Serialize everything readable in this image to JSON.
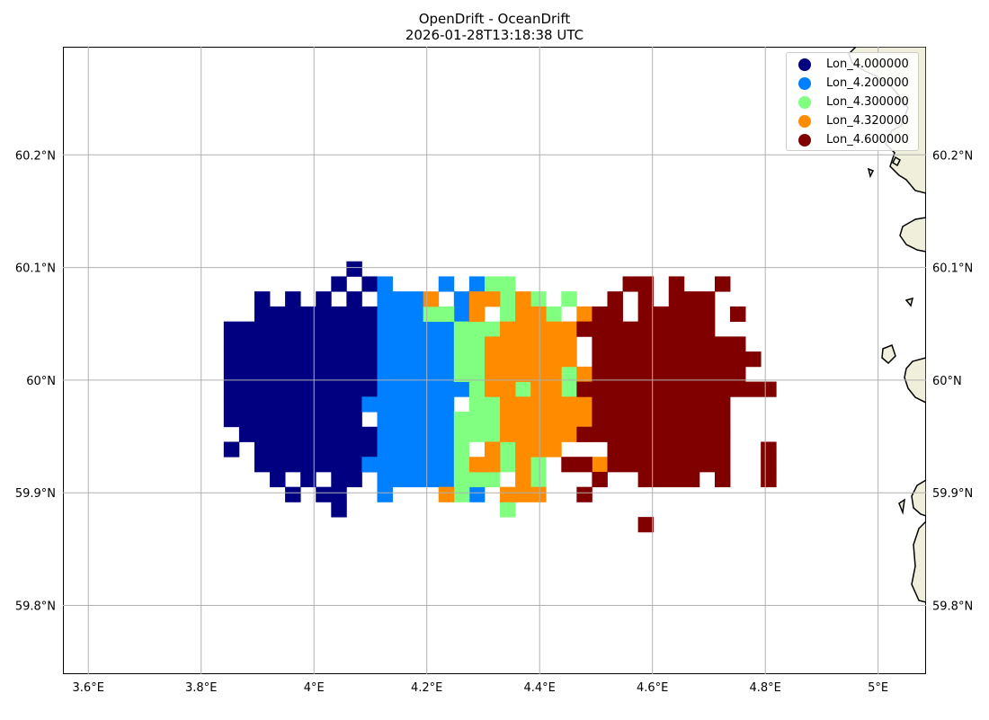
{
  "title": {
    "line1": "OpenDrift - OceanDrift",
    "line2": "2026-01-28T13:18:38 UTC"
  },
  "colors": {
    "land_fill": "#efefdb",
    "coastline": "#000000",
    "grid": "#b0b0b0"
  },
  "map": {
    "lon_range": [
      3.555,
      5.085
    ],
    "lat_range": [
      59.739,
      60.296
    ],
    "cell_size_deg": [
      0.0272,
      0.01335
    ],
    "grid_origin": [
      3.84,
      60.1055
    ],
    "x_ticks": [
      {
        "value": 3.6,
        "label": "3.6°E"
      },
      {
        "value": 3.8,
        "label": "3.8°E"
      },
      {
        "value": 4.0,
        "label": "4°E"
      },
      {
        "value": 4.2,
        "label": "4.2°E"
      },
      {
        "value": 4.4,
        "label": "4.4°E"
      },
      {
        "value": 4.6,
        "label": "4.6°E"
      },
      {
        "value": 4.8,
        "label": "4.8°E"
      },
      {
        "value": 5.0,
        "label": "5°E"
      }
    ],
    "y_ticks": [
      {
        "value": 59.8,
        "label": "59.8°N"
      },
      {
        "value": 59.9,
        "label": "59.9°N"
      },
      {
        "value": 60.0,
        "label": "60°N"
      },
      {
        "value": 60.1,
        "label": "60.1°N"
      },
      {
        "value": 60.2,
        "label": "60.2°N"
      }
    ],
    "series": [
      {
        "name": "Lon_4.000000",
        "color": "#000080",
        "rows": [
          [
            [
              8,
              8
            ]
          ],
          [
            [
              7,
              7
            ],
            [
              9,
              9
            ]
          ],
          [
            [
              2,
              2
            ],
            [
              4,
              4
            ],
            [
              6,
              6
            ],
            [
              8,
              8
            ]
          ],
          [
            [
              2,
              9
            ]
          ],
          [
            [
              0,
              9
            ]
          ],
          [
            [
              0,
              9
            ]
          ],
          [
            [
              0,
              9
            ]
          ],
          [
            [
              0,
              9
            ]
          ],
          [
            [
              0,
              9
            ]
          ],
          [
            [
              0,
              9
            ]
          ],
          [
            [
              0,
              8
            ]
          ],
          [
            [
              1,
              9
            ]
          ],
          [
            [
              0,
              0
            ],
            [
              2,
              9
            ]
          ],
          [
            [
              2,
              9
            ]
          ],
          [
            [
              3,
              3
            ],
            [
              5,
              5
            ],
            [
              7,
              8
            ]
          ],
          [
            [
              4,
              4
            ],
            [
              6,
              7
            ]
          ],
          [
            [
              7,
              7
            ]
          ]
        ]
      },
      {
        "name": "Lon_4.200000",
        "color": "#0080ff",
        "rows": [
          [],
          [
            [
              10,
              10
            ],
            [
              14,
              14
            ],
            [
              16,
              16
            ]
          ],
          [
            [
              10,
              12
            ],
            [
              15,
              15
            ]
          ],
          [
            [
              10,
              12
            ],
            [
              15,
              15
            ]
          ],
          [
            [
              10,
              14
            ]
          ],
          [
            [
              10,
              14
            ]
          ],
          [
            [
              10,
              14
            ]
          ],
          [
            [
              10,
              15
            ]
          ],
          [
            [
              10,
              15
            ]
          ],
          [
            [
              9,
              14
            ]
          ],
          [
            [
              10,
              14
            ]
          ],
          [
            [
              10,
              14
            ]
          ],
          [
            [
              10,
              14
            ]
          ],
          [
            [
              9,
              14
            ]
          ],
          [
            [
              10,
              14
            ]
          ],
          [
            [
              10,
              10
            ],
            [
              16,
              16
            ]
          ],
          []
        ]
      },
      {
        "name": "Lon_4.300000",
        "color": "#80ff80",
        "rows": [
          [],
          [
            [
              17,
              18
            ]
          ],
          [
            [
              18,
              18
            ],
            [
              20,
              20
            ],
            [
              22,
              22
            ]
          ],
          [
            [
              13,
              14
            ],
            [
              18,
              18
            ],
            [
              21,
              21
            ]
          ],
          [
            [
              15,
              17
            ],
            [
              20,
              20
            ]
          ],
          [
            [
              15,
              16
            ]
          ],
          [
            [
              15,
              16
            ]
          ],
          [
            [
              15,
              16
            ],
            [
              22,
              22
            ]
          ],
          [
            [
              16,
              16
            ],
            [
              19,
              19
            ],
            [
              22,
              22
            ]
          ],
          [
            [
              16,
              17
            ]
          ],
          [
            [
              15,
              17
            ]
          ],
          [
            [
              15,
              17
            ]
          ],
          [
            [
              15,
              15
            ],
            [
              18,
              18
            ]
          ],
          [
            [
              15,
              15
            ],
            [
              18,
              18
            ],
            [
              20,
              20
            ]
          ],
          [
            [
              15,
              17
            ],
            [
              20,
              20
            ]
          ],
          [
            [
              15,
              15
            ]
          ],
          [
            [
              18,
              18
            ]
          ]
        ]
      },
      {
        "name": "Lon_4.320000",
        "color": "#ff8c00",
        "rows": [
          [],
          [],
          [
            [
              13,
              13
            ],
            [
              16,
              17
            ],
            [
              19,
              19
            ]
          ],
          [
            [
              16,
              16
            ],
            [
              19,
              20
            ],
            [
              23,
              23
            ]
          ],
          [
            [
              18,
              22
            ]
          ],
          [
            [
              17,
              22
            ]
          ],
          [
            [
              17,
              22
            ]
          ],
          [
            [
              17,
              21
            ],
            [
              23,
              23
            ]
          ],
          [
            [
              17,
              18
            ],
            [
              20,
              21
            ]
          ],
          [
            [
              18,
              23
            ]
          ],
          [
            [
              18,
              23
            ]
          ],
          [
            [
              18,
              23
            ]
          ],
          [
            [
              17,
              17
            ],
            [
              19,
              21
            ]
          ],
          [
            [
              16,
              17
            ],
            [
              19,
              19
            ],
            [
              24,
              24
            ]
          ],
          [
            [
              19,
              19
            ]
          ],
          [
            [
              14,
              14
            ],
            [
              18,
              20
            ]
          ],
          []
        ]
      },
      {
        "name": "Lon_4.600000",
        "color": "#800000",
        "rows": [
          [],
          [
            [
              26,
              27
            ],
            [
              29,
              29
            ],
            [
              32,
              32
            ]
          ],
          [
            [
              25,
              25
            ],
            [
              27,
              27
            ],
            [
              29,
              31
            ]
          ],
          [
            [
              24,
              25
            ],
            [
              27,
              31
            ],
            [
              33,
              33
            ]
          ],
          [
            [
              23,
              31
            ]
          ],
          [
            [
              24,
              33
            ]
          ],
          [
            [
              24,
              34
            ]
          ],
          [
            [
              24,
              33
            ]
          ],
          [
            [
              23,
              35
            ]
          ],
          [
            [
              24,
              32
            ]
          ],
          [
            [
              24,
              32
            ]
          ],
          [
            [
              23,
              32
            ]
          ],
          [
            [
              25,
              32
            ],
            [
              35,
              35
            ]
          ],
          [
            [
              22,
              23
            ],
            [
              25,
              32
            ],
            [
              35,
              35
            ]
          ],
          [
            [
              24,
              24
            ],
            [
              27,
              30
            ],
            [
              32,
              32
            ],
            [
              35,
              35
            ]
          ],
          [
            [
              23,
              23
            ]
          ],
          [],
          [
            [
              27,
              27
            ]
          ]
        ]
      }
    ]
  },
  "legend": {
    "position": "top-right",
    "entries": [
      {
        "label": "Lon_4.000000",
        "color": "#000080"
      },
      {
        "label": "Lon_4.200000",
        "color": "#0080ff"
      },
      {
        "label": "Lon_4.300000",
        "color": "#80ff80"
      },
      {
        "label": "Lon_4.320000",
        "color": "#ff8c00"
      },
      {
        "label": "Lon_4.600000",
        "color": "#800000"
      }
    ]
  }
}
